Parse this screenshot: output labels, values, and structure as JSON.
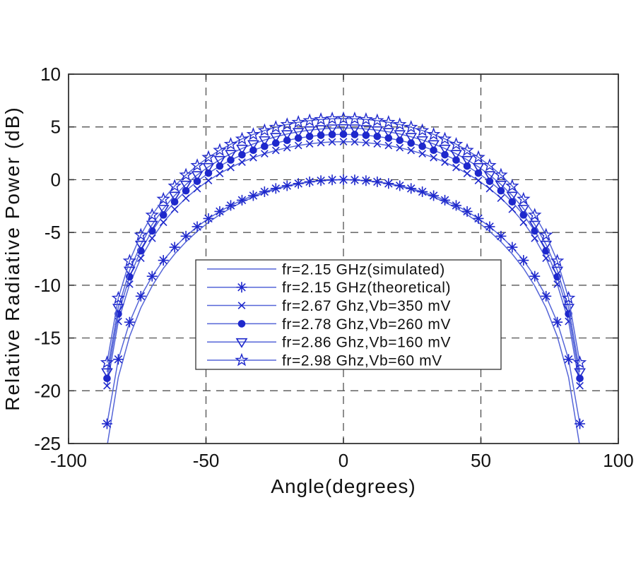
{
  "chart_data": {
    "type": "line",
    "title": "",
    "xlabel": "Angle(degrees)",
    "ylabel": "Relative Radiative Power (dB)",
    "xlim": [
      -100,
      100
    ],
    "ylim": [
      -25,
      10
    ],
    "xticks": [
      -100,
      -50,
      0,
      50,
      100
    ],
    "yticks": [
      10,
      5,
      0,
      -5,
      -10,
      -15,
      -20,
      -25
    ],
    "grid": "dashed",
    "legend_position": "inside-bottom-center",
    "colors": {
      "line": "#5565d8",
      "marker": "#1e28cc",
      "axis": "#333333",
      "grid": "#444444",
      "text": "#111111",
      "background": "#ffffff"
    },
    "series": [
      {
        "name": "fr=2.15 GHz(simulated)",
        "marker": "none",
        "x": [
          -85.8,
          -81.9,
          -77.8,
          -73.7,
          -69.6,
          -65.5,
          -61.4,
          -57.3,
          -53.2,
          -49.1,
          -45,
          -41,
          -36.9,
          -32.8,
          -28.7,
          -24.6,
          -20.5,
          -16.4,
          -12.3,
          -8.2,
          -4.1,
          0,
          4.1,
          8.2,
          12.3,
          16.4,
          20.5,
          24.6,
          28.7,
          32.8,
          36.9,
          41,
          45,
          49.1,
          53.2,
          57.3,
          61.4,
          65.5,
          69.6,
          73.7,
          77.8,
          81.9,
          85.8
        ],
        "y": [
          -24.98,
          -18.72,
          -14.85,
          -12.14,
          -10.07,
          -8.4,
          -7.04,
          -5.89,
          -4.9,
          -4.05,
          -3.31,
          -2.68,
          -2.13,
          -1.66,
          -1.25,
          -0.91,
          -0.63,
          -0.4,
          -0.22,
          -0.1,
          -0.02,
          0.0,
          -0.02,
          -0.1,
          -0.22,
          -0.4,
          -0.63,
          -0.91,
          -1.25,
          -1.66,
          -2.13,
          -2.68,
          -3.31,
          -4.05,
          -4.9,
          -5.89,
          -7.04,
          -8.4,
          -10.07,
          -12.14,
          -14.85,
          -18.72,
          -24.98
        ]
      },
      {
        "name": "fr=2.15 GHz(theoretical)",
        "marker": "asterisk",
        "x": [
          -86,
          -81.9,
          -77.8,
          -73.7,
          -69.6,
          -65.5,
          -61.4,
          -57.3,
          -53.2,
          -49.1,
          -45,
          -41,
          -36.9,
          -32.8,
          -28.7,
          -24.6,
          -20.5,
          -16.4,
          -12.3,
          -8.2,
          -4.1,
          0,
          4.1,
          8.2,
          12.3,
          16.4,
          20.5,
          24.6,
          28.7,
          32.8,
          36.9,
          41,
          45,
          49.1,
          53.2,
          57.3,
          61.4,
          65.5,
          69.6,
          73.7,
          77.8,
          81.9,
          86
        ],
        "y": [
          -23.13,
          -17.02,
          -13.5,
          -11.04,
          -9.15,
          -7.64,
          -6.4,
          -5.35,
          -4.45,
          -3.68,
          -3.01,
          -2.44,
          -1.94,
          -1.51,
          -1.14,
          -0.83,
          -0.57,
          -0.36,
          -0.2,
          -0.09,
          -0.02,
          0.0,
          -0.02,
          -0.09,
          -0.2,
          -0.36,
          -0.57,
          -0.83,
          -1.14,
          -1.51,
          -1.94,
          -2.44,
          -3.01,
          -3.68,
          -4.45,
          -5.35,
          -6.4,
          -7.64,
          -9.15,
          -11.04,
          -13.5,
          -17.02,
          -23.13
        ]
      },
      {
        "name": "fr=2.67 Ghz,Vb=350 mV",
        "marker": "x",
        "x": [
          -86,
          -81.9,
          -77.8,
          -73.7,
          -69.6,
          -65.5,
          -61.4,
          -57.3,
          -53.2,
          -49.1,
          -45,
          -41,
          -36.9,
          -32.8,
          -28.7,
          -24.6,
          -20.5,
          -16.4,
          -12.3,
          -8.2,
          -4.1,
          0,
          4.1,
          8.2,
          12.3,
          16.4,
          20.5,
          24.6,
          28.7,
          32.8,
          36.9,
          41,
          45,
          49.1,
          53.2,
          57.3,
          61.4,
          65.5,
          69.6,
          73.7,
          77.8,
          81.9,
          86
        ],
        "y": [
          -19.53,
          -13.42,
          -9.9,
          -7.44,
          -5.55,
          -4.04,
          -2.8,
          -1.75,
          -0.85,
          -0.08,
          0.59,
          1.16,
          1.66,
          2.09,
          2.46,
          2.77,
          3.03,
          3.24,
          3.4,
          3.51,
          3.58,
          3.6,
          3.58,
          3.51,
          3.4,
          3.24,
          3.03,
          2.77,
          2.46,
          2.09,
          1.66,
          1.16,
          0.59,
          -0.08,
          -0.85,
          -1.75,
          -2.8,
          -4.04,
          -5.55,
          -7.44,
          -9.9,
          -13.42,
          -19.53
        ]
      },
      {
        "name": "fr=2.78 Ghz,Vb=260 mV",
        "marker": "circle-filled",
        "x": [
          -86,
          -81.9,
          -77.8,
          -73.7,
          -69.6,
          -65.5,
          -61.4,
          -57.3,
          -53.2,
          -49.1,
          -45,
          -41,
          -36.9,
          -32.8,
          -28.7,
          -24.6,
          -20.5,
          -16.4,
          -12.3,
          -8.2,
          -4.1,
          0,
          4.1,
          8.2,
          12.3,
          16.4,
          20.5,
          24.6,
          28.7,
          32.8,
          36.9,
          41,
          45,
          49.1,
          53.2,
          57.3,
          61.4,
          65.5,
          69.6,
          73.7,
          77.8,
          81.9,
          86
        ],
        "y": [
          -18.83,
          -12.72,
          -9.2,
          -6.74,
          -4.85,
          -3.34,
          -2.1,
          -1.05,
          -0.15,
          0.62,
          1.29,
          1.86,
          2.36,
          2.79,
          3.16,
          3.47,
          3.73,
          3.94,
          4.1,
          4.21,
          4.28,
          4.3,
          4.28,
          4.21,
          4.1,
          3.94,
          3.73,
          3.47,
          3.16,
          2.79,
          2.36,
          1.86,
          1.29,
          0.62,
          -0.15,
          -1.05,
          -2.1,
          -3.34,
          -4.85,
          -6.74,
          -9.2,
          -12.72,
          -18.83
        ]
      },
      {
        "name": "fr=2.86 Ghz,Vb=160 mV",
        "marker": "triangle-down",
        "x": [
          -86,
          -81.9,
          -77.8,
          -73.7,
          -69.6,
          -65.5,
          -61.4,
          -57.3,
          -53.2,
          -49.1,
          -45,
          -41,
          -36.9,
          -32.8,
          -28.7,
          -24.6,
          -20.5,
          -16.4,
          -12.3,
          -8.2,
          -4.1,
          0,
          4.1,
          8.2,
          12.3,
          16.4,
          20.5,
          24.6,
          28.7,
          32.8,
          36.9,
          41,
          45,
          49.1,
          53.2,
          57.3,
          61.4,
          65.5,
          69.6,
          73.7,
          77.8,
          81.9,
          86
        ],
        "y": [
          -18.23,
          -12.12,
          -8.6,
          -6.14,
          -4.25,
          -2.74,
          -1.5,
          -0.45,
          0.45,
          1.22,
          1.89,
          2.46,
          2.96,
          3.39,
          3.76,
          4.07,
          4.33,
          4.54,
          4.7,
          4.81,
          4.88,
          4.9,
          4.88,
          4.81,
          4.7,
          4.54,
          4.33,
          4.07,
          3.76,
          3.39,
          2.96,
          2.46,
          1.89,
          1.22,
          0.45,
          -0.45,
          -1.5,
          -2.74,
          -4.25,
          -6.14,
          -8.6,
          -12.12,
          -18.23
        ]
      },
      {
        "name": "fr=2.98 Ghz,Vb=60 mV",
        "marker": "pentagram",
        "x": [
          -86,
          -81.9,
          -77.8,
          -73.7,
          -69.6,
          -65.5,
          -61.4,
          -57.3,
          -53.2,
          -49.1,
          -45,
          -41,
          -36.9,
          -32.8,
          -28.7,
          -24.6,
          -20.5,
          -16.4,
          -12.3,
          -8.2,
          -4.1,
          0,
          4.1,
          8.2,
          12.3,
          16.4,
          20.5,
          24.6,
          28.7,
          32.8,
          36.9,
          41,
          45,
          49.1,
          53.2,
          57.3,
          61.4,
          65.5,
          69.6,
          73.7,
          77.8,
          81.9,
          86
        ],
        "y": [
          -17.33,
          -11.22,
          -7.7,
          -5.24,
          -3.35,
          -1.84,
          -0.6,
          0.45,
          1.35,
          2.12,
          2.79,
          3.36,
          3.86,
          4.29,
          4.66,
          4.97,
          5.23,
          5.44,
          5.6,
          5.71,
          5.78,
          5.8,
          5.78,
          5.71,
          5.6,
          5.44,
          5.23,
          4.97,
          4.66,
          4.29,
          3.86,
          3.36,
          2.79,
          2.12,
          1.35,
          0.45,
          -0.6,
          -1.84,
          -3.35,
          -5.24,
          -7.7,
          -11.22,
          -17.33
        ]
      }
    ]
  }
}
